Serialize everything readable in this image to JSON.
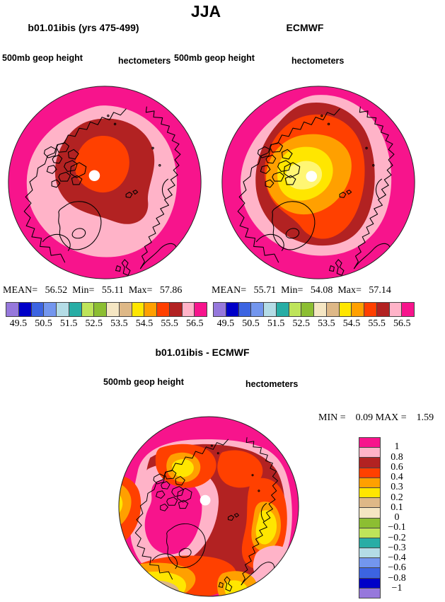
{
  "figure_title": "JJA",
  "palette_map": {
    "magenta": "#f7148c",
    "pink": "#ffb3c8",
    "darkred": "#b22222",
    "vermillion": "#ff4000",
    "orange": "#ffa000",
    "gold": "#ffe600",
    "paleyellow": "#fff673",
    "tan": "#deb887",
    "cream": "#f5e6c3",
    "olive": "#8cbe32",
    "lightgreen": "#bee45a",
    "teal": "#28ada5",
    "palecyan": "#b4dce6",
    "cornflower": "#7396ee",
    "royal": "#3c64e1",
    "darkblue": "#0000c8",
    "purple": "#9678dc",
    "white": "#ffffff"
  },
  "panels": {
    "model": {
      "title": "b01.01ibis (yrs 475-499)",
      "field_label": "500mb geop height",
      "units_label": "hectometers",
      "stats_line": "MEAN=   56.52  Min=   55.11  Max=   57.86",
      "colorbar_tick_labels": [
        "49.5",
        "50.5",
        "51.5",
        "52.5",
        "53.5",
        "54.5",
        "55.5",
        "56.5"
      ]
    },
    "reference": {
      "title": "ECMWF",
      "field_label": "500mb geop height",
      "units_label": "hectometers",
      "stats_line": "MEAN=   55.71  Min=   54.08  Max=   57.14",
      "colorbar_tick_labels": [
        "49.5",
        "50.5",
        "51.5",
        "52.5",
        "53.5",
        "54.5",
        "55.5",
        "56.5"
      ]
    },
    "difference": {
      "title": "b01.01ibis - ECMWF",
      "field_label": "500mb geop height",
      "units_label": "hectometers",
      "stats_line": "MIN =    0.09 MAX =    1.59",
      "colorbar_tick_labels": [
        "1",
        "0.8",
        "0.6",
        "0.4",
        "0.3",
        "0.2",
        "0.1",
        "0",
        "−0.1",
        "−0.2",
        "−0.3",
        "−0.4",
        "−0.6",
        "−0.8",
        "−1"
      ]
    }
  },
  "chart_data": [
    {
      "type": "heatmap",
      "subtype": "filled-contour polar stereographic map",
      "season": "JJA",
      "title": "b01.01ibis (yrs 475-499)",
      "variable": "500mb geop height",
      "units": "hectometers",
      "stats": {
        "mean": 56.52,
        "min": 55.11,
        "max": 57.86
      },
      "contour_interval": 0.5,
      "level_edges": [
        49.5,
        50.0,
        50.5,
        51.0,
        51.5,
        52.0,
        52.5,
        53.0,
        53.5,
        54.0,
        54.5,
        55.0,
        55.5,
        56.0,
        56.5
      ],
      "labeled_ticks": [
        49.5,
        50.5,
        51.5,
        52.5,
        53.5,
        54.5,
        55.5,
        56.5
      ],
      "colorbar_colors": [
        "#9678dc",
        "#0000c8",
        "#3c64e1",
        "#7396ee",
        "#b4dce6",
        "#28ada5",
        "#bee45a",
        "#8cbe32",
        "#f5e6c3",
        "#deb887",
        "#ffe600",
        "#ffa000",
        "#ff4000",
        "#b22222",
        "#ffb3c8",
        "#f7148c"
      ],
      "legend_position": "below",
      "visible_fields": "concentric lows over pole: magenta >56.5 at rim, pink 56.0-56.5, dark red 55.5-56.0, orange-red 55.0-55.5 core at pole"
    },
    {
      "type": "heatmap",
      "subtype": "filled-contour polar stereographic map",
      "season": "JJA",
      "title": "ECMWF",
      "variable": "500mb geop height",
      "units": "hectometers",
      "stats": {
        "mean": 55.71,
        "min": 54.08,
        "max": 57.14
      },
      "contour_interval": 0.5,
      "level_edges": [
        49.5,
        50.0,
        50.5,
        51.0,
        51.5,
        52.0,
        52.5,
        53.0,
        53.5,
        54.0,
        54.5,
        55.0,
        55.5,
        56.0,
        56.5
      ],
      "labeled_ticks": [
        49.5,
        50.5,
        51.5,
        52.5,
        53.5,
        54.5,
        55.5,
        56.5
      ],
      "colorbar_colors": [
        "#9678dc",
        "#0000c8",
        "#3c64e1",
        "#7396ee",
        "#b4dce6",
        "#28ada5",
        "#bee45a",
        "#8cbe32",
        "#f5e6c3",
        "#deb887",
        "#ffe600",
        "#ffa000",
        "#ff4000",
        "#b22222",
        "#ffb3c8",
        "#f7148c"
      ],
      "legend_position": "below",
      "visible_fields": "deeper polar low: rings magenta, pink, dark red, orange-red, orange, yellow core near pole"
    },
    {
      "type": "heatmap",
      "subtype": "filled-contour polar stereographic difference map",
      "season": "JJA",
      "title": "b01.01ibis - ECMWF",
      "variable": "500mb geop height",
      "units": "hectometers",
      "stats": {
        "min": 0.09,
        "max": 1.59
      },
      "level_edges_top_to_bottom": [
        1,
        0.8,
        0.6,
        0.4,
        0.3,
        0.2,
        0.1,
        0,
        -0.1,
        -0.2,
        -0.3,
        -0.4,
        -0.6,
        -0.8,
        -1
      ],
      "colorbar_colors_top_to_bottom": [
        "#f7148c",
        "#ffb3c8",
        "#b22222",
        "#ff4000",
        "#ffa000",
        "#ffe600",
        "#deb887",
        "#f5e6c3",
        "#8cbe32",
        "#bee45a",
        "#28ada5",
        "#b4dce6",
        "#7396ee",
        "#3c64e1",
        "#0000c8",
        "#9678dc"
      ],
      "legend_position": "right",
      "visible_fields": "all-positive bias 0.09-1.59: magenta >1 over Canada/Greenland and top rim, pink 0.8-1, dark red 0.6-0.8, orange-red 0.4-0.6, orange/yellow minima lobes, cream/tan near 0.1 at lower-left rim"
    }
  ]
}
